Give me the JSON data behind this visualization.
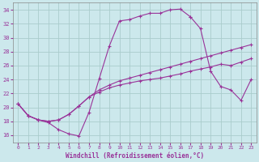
{
  "xlabel": "Windchill (Refroidissement éolien,°C)",
  "bg_color": "#cce8ec",
  "grid_color": "#aacccc",
  "line_color": "#993399",
  "xlim": [
    -0.5,
    23.5
  ],
  "ylim": [
    15.0,
    35.0
  ],
  "xticks": [
    0,
    1,
    2,
    3,
    4,
    5,
    6,
    7,
    8,
    9,
    10,
    11,
    12,
    13,
    14,
    15,
    16,
    17,
    18,
    19,
    20,
    21,
    22,
    23
  ],
  "yticks": [
    16,
    18,
    20,
    22,
    24,
    26,
    28,
    30,
    32,
    34
  ],
  "curve1_x": [
    0,
    1,
    2,
    3,
    4,
    5,
    6,
    7,
    8,
    9,
    10,
    11,
    12,
    13,
    14,
    15,
    16,
    17
  ],
  "curve1_y": [
    20.5,
    18.8,
    18.2,
    17.8,
    16.8,
    16.2,
    15.9,
    19.3,
    24.1,
    28.8,
    32.4,
    32.6,
    33.1,
    33.5,
    33.5,
    34.0,
    34.1,
    33.0
  ],
  "curve2_x": [
    17,
    18,
    19,
    20,
    21,
    22,
    23
  ],
  "curve2_y": [
    33.0,
    31.3,
    25.2,
    23.0,
    22.5,
    21.0,
    24.0
  ],
  "curve3_x": [
    0,
    1,
    2,
    3,
    4,
    5,
    6,
    7,
    8,
    9,
    10,
    11,
    12,
    13,
    14,
    15,
    16,
    17,
    18,
    19,
    20,
    21,
    22,
    23
  ],
  "curve3_y": [
    20.5,
    18.8,
    18.2,
    18.0,
    18.2,
    19.0,
    20.2,
    21.5,
    22.2,
    22.8,
    23.2,
    23.5,
    23.8,
    24.0,
    24.2,
    24.5,
    24.8,
    25.2,
    25.5,
    25.8,
    26.2,
    26.0,
    26.5,
    27.0
  ],
  "curve4_x": [
    0,
    1,
    2,
    3,
    4,
    5,
    6,
    7,
    8,
    9,
    10,
    11,
    12,
    13,
    14,
    15,
    16,
    17,
    18,
    19,
    20,
    21,
    22,
    23
  ],
  "curve4_y": [
    20.5,
    18.8,
    18.2,
    18.0,
    18.2,
    19.0,
    20.2,
    21.5,
    22.5,
    23.2,
    23.8,
    24.2,
    24.6,
    25.0,
    25.4,
    25.8,
    26.2,
    26.6,
    27.0,
    27.4,
    27.8,
    28.2,
    28.6,
    29.0
  ]
}
